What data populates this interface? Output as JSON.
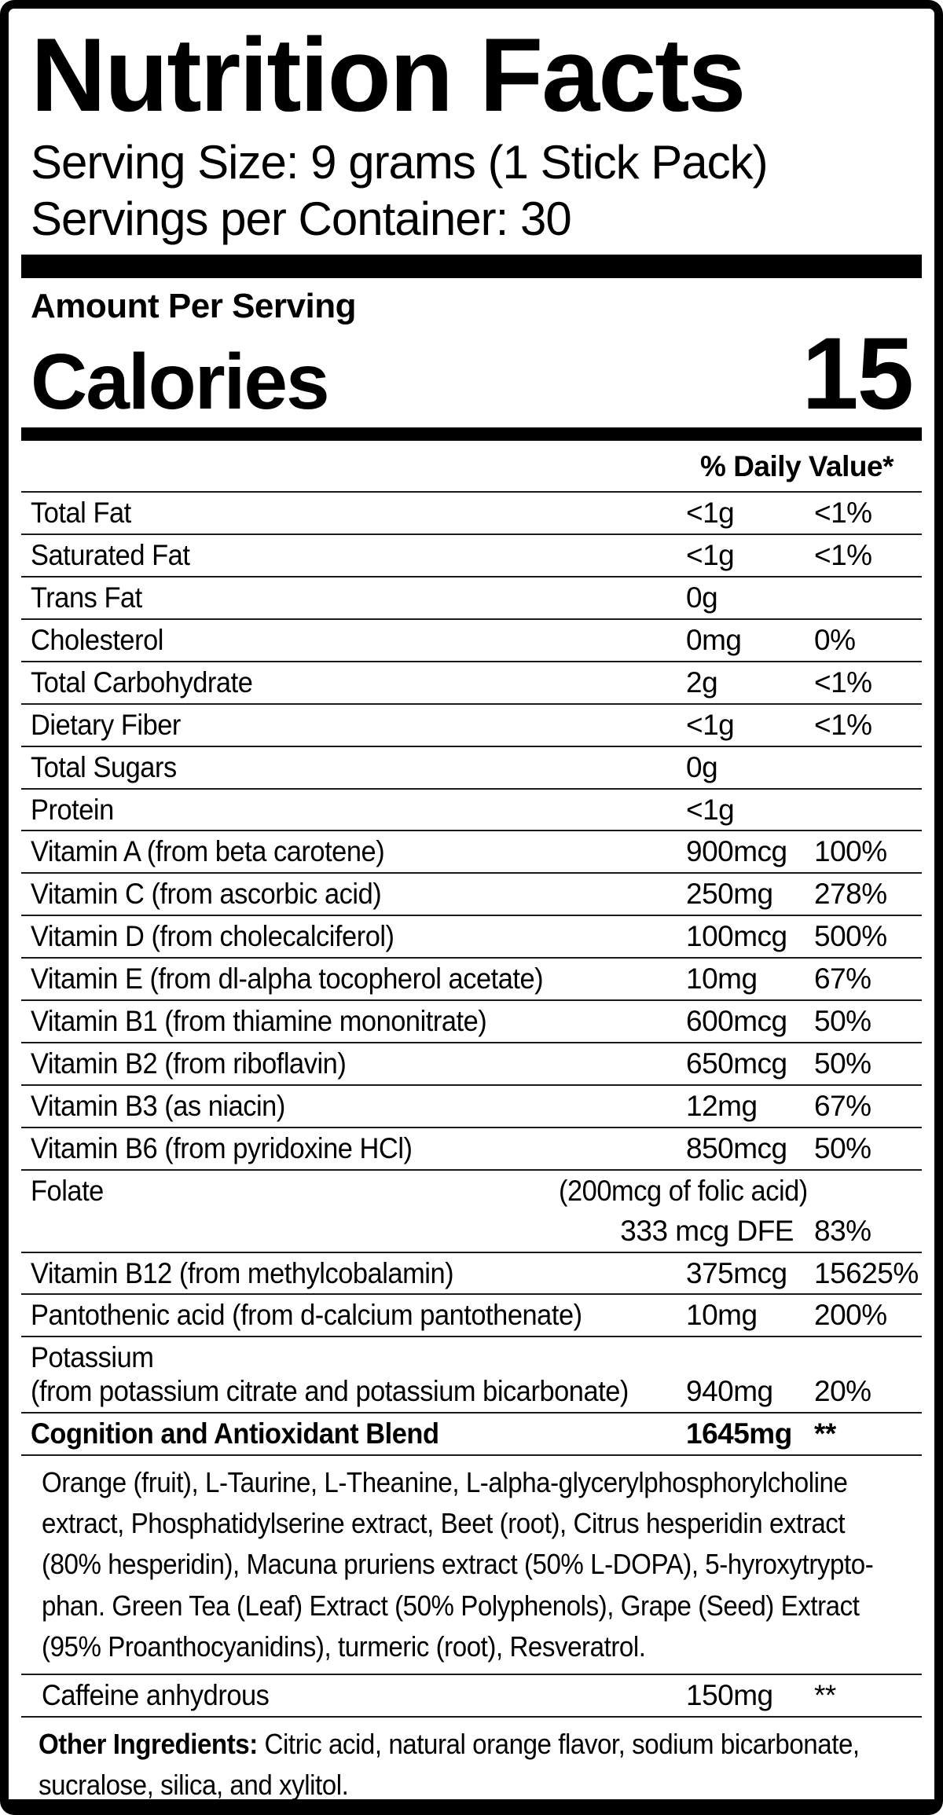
{
  "colors": {
    "text": "#000000",
    "background": "#ffffff"
  },
  "label": {
    "title": "Nutrition Facts",
    "serving_size": "Serving Size: 9 grams (1 Stick Pack)",
    "servings_per_container": "Servings per Container: 30",
    "amount_per_serving": "Amount Per Serving",
    "calories_label": "Calories",
    "calories_value": "15",
    "daily_value_header": "% Daily Value*"
  },
  "table": {
    "rows": [
      {
        "type": "simple",
        "name": "Total Fat",
        "amount": "<1g",
        "dv": "<1%"
      },
      {
        "type": "simple",
        "name": "Saturated Fat",
        "amount": "<1g",
        "dv": "<1%"
      },
      {
        "type": "simple",
        "name": "Trans Fat",
        "amount": "0g",
        "dv": ""
      },
      {
        "type": "simple",
        "name": "Cholesterol",
        "amount": "0mg",
        "dv": "0%"
      },
      {
        "type": "simple",
        "name": "Total Carbohydrate",
        "amount": "2g",
        "dv": "<1%"
      },
      {
        "type": "simple",
        "name": "Dietary Fiber",
        "amount": "<1g",
        "dv": "<1%"
      },
      {
        "type": "simple",
        "name": "Total Sugars",
        "amount": "0g",
        "dv": ""
      },
      {
        "type": "simple",
        "name": "Protein",
        "amount": "<1g",
        "dv": ""
      },
      {
        "type": "simple",
        "name": "Vitamin A (from beta carotene)",
        "amount": "900mcg",
        "dv": "100%"
      },
      {
        "type": "simple",
        "name": "Vitamin C (from ascorbic acid)",
        "amount": "250mg",
        "dv": "278%"
      },
      {
        "type": "simple",
        "name": "Vitamin D (from cholecalciferol)",
        "amount": "100mcg",
        "dv": "500%"
      },
      {
        "type": "simple",
        "name": "Vitamin E (from dl-alpha tocopherol acetate)",
        "amount": "10mg",
        "dv": "67%"
      },
      {
        "type": "simple",
        "name": "Vitamin B1 (from thiamine mononitrate)",
        "amount": "600mcg",
        "dv": "50%"
      },
      {
        "type": "simple",
        "name": "Vitamin B2 (from riboflavin)",
        "amount": "650mcg",
        "dv": "50%"
      },
      {
        "type": "simple",
        "name": "Vitamin B3 (as niacin)",
        "amount": "12mg",
        "dv": "67%"
      },
      {
        "type": "simple",
        "name": "Vitamin B6 (from pyridoxine HCl)",
        "amount": "850mcg",
        "dv": "50%"
      },
      {
        "type": "folate",
        "name": "Folate",
        "note": "(200mcg of folic acid)",
        "amount": "333 mcg DFE",
        "dv": "83%"
      },
      {
        "type": "simple",
        "name": "Vitamin B12 (from methylcobalamin)",
        "amount": "375mcg",
        "dv": "15625%"
      },
      {
        "type": "simple",
        "name": "Pantothenic acid (from d-calcium pantothenate)",
        "amount": "10mg",
        "dv": "200%"
      },
      {
        "type": "twoline",
        "name": "Potassium",
        "subname": "(from potassium citrate and potassium bicarbonate)",
        "amount": "940mg",
        "dv": "20%"
      },
      {
        "type": "bold",
        "name": "Cognition and Antioxidant Blend",
        "amount": "1645mg",
        "dv": "**"
      },
      {
        "type": "paragraph",
        "lines": [
          "Orange (fruit), L-Taurine, L-Theanine, L-alpha-glycerylphosphorylcholine",
          "extract, Phosphatidylserine extract, Beet (root), Citrus hesperidin extract",
          "(80% hesperidin), Macuna pruriens extract (50% L-DOPA), 5-hyroxytrypto-",
          "phan. Green Tea (Leaf) Extract (50% Polyphenols), Grape (Seed) Extract",
          "(95% Proanthocyanidins), turmeric (root), Resveratrol."
        ]
      },
      {
        "type": "simple",
        "indent": true,
        "name": "Caffeine anhydrous",
        "amount": "150mg",
        "dv": "**"
      },
      {
        "type": "other",
        "label": "Other Ingredients:",
        "line1": "Citric acid, natural orange flavor, sodium bicarbonate,",
        "line2": "sucralose, silica, and xylitol."
      }
    ]
  }
}
